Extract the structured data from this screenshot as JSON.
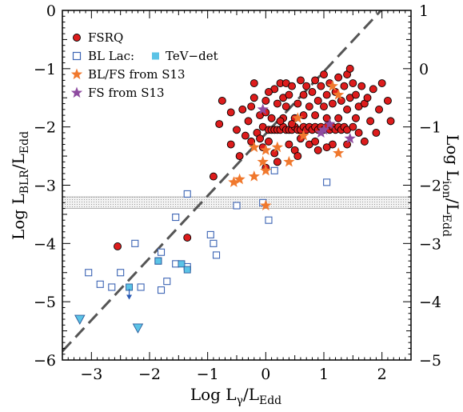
{
  "chart_data": {
    "type": "scatter",
    "xlabel": "Log L_γ/L_Edd",
    "ylabel": "Log L_BLR/L_Edd",
    "y2label": "Log L_ion/L_Edd",
    "xlim": [
      -3.5,
      2.5
    ],
    "ylim": [
      -6,
      0
    ],
    "y2lim": [
      -5,
      1
    ],
    "xticks": [
      -3,
      -2,
      -1,
      0,
      1,
      2
    ],
    "xtick_labels": [
      "−3",
      "−2",
      "−1",
      "0",
      "1",
      "2"
    ],
    "yticks": [
      0,
      -1,
      -2,
      -3,
      -4,
      -5,
      -6
    ],
    "ytick_labels": [
      "0",
      "−1",
      "−2",
      "−3",
      "−4",
      "−5",
      "−6"
    ],
    "y2ticks": [
      1,
      0,
      -1,
      -2,
      -3,
      -4,
      -5
    ],
    "y2tick_labels": [
      "1",
      "0",
      "−1",
      "−2",
      "−3",
      "−4",
      "−5"
    ],
    "grid": false,
    "legend_position": "top-left",
    "legend": [
      {
        "label": "FSRQ",
        "marker": "circle",
        "color": "#dd1c1c"
      },
      {
        "label": "BL Lac:",
        "marker": "open-square",
        "color": "#3c64b4"
      },
      {
        "label": "TeV−det",
        "marker": "filled-square",
        "color": "#5bc3e6"
      },
      {
        "label": "BL/FS from S13",
        "marker": "star",
        "color": "#f0782d"
      },
      {
        "label": "FS from S13",
        "marker": "star",
        "color": "#8e4ba0"
      }
    ],
    "reference_line": {
      "style": "dashed",
      "color": "#555555",
      "points": [
        [
          -3.5,
          -5.85
        ],
        [
          2.5,
          0.55
        ]
      ]
    },
    "shaded_band": {
      "y_range": [
        -3.4,
        -3.2
      ]
    },
    "series": [
      {
        "name": "FSRQ",
        "points": [
          [
            -2.55,
            -4.05
          ],
          [
            -1.35,
            -3.9
          ],
          [
            -0.9,
            -2.85
          ],
          [
            -0.45,
            -2.5
          ],
          [
            -0.6,
            -2.3
          ],
          [
            -0.5,
            -2.05
          ],
          [
            -0.8,
            -1.95
          ],
          [
            -0.3,
            -1.9
          ],
          [
            -0.75,
            -1.55
          ],
          [
            -0.4,
            -1.7
          ],
          [
            -0.2,
            -1.5
          ],
          [
            -0.25,
            -2.25
          ],
          [
            -0.15,
            -2.1
          ],
          [
            -0.1,
            -1.8
          ],
          [
            -0.05,
            -2.0
          ],
          [
            -0.1,
            -2.2
          ],
          [
            -0.05,
            -2.35
          ],
          [
            0.0,
            -1.55
          ],
          [
            0.0,
            -1.75
          ],
          [
            0.05,
            -2.05
          ],
          [
            0.05,
            -2.25
          ],
          [
            0.1,
            -2.05
          ],
          [
            0.1,
            -1.85
          ],
          [
            0.15,
            -2.05
          ],
          [
            0.15,
            -1.35
          ],
          [
            0.15,
            -2.45
          ],
          [
            0.2,
            -2.05
          ],
          [
            0.2,
            -1.6
          ],
          [
            0.25,
            -2.05
          ],
          [
            0.25,
            -1.25
          ],
          [
            0.3,
            -2.0
          ],
          [
            0.3,
            -1.85
          ],
          [
            0.3,
            -1.5
          ],
          [
            0.35,
            -2.05
          ],
          [
            0.35,
            -1.25
          ],
          [
            0.35,
            -1.65
          ],
          [
            0.4,
            -2.05
          ],
          [
            0.4,
            -2.3
          ],
          [
            0.4,
            -1.45
          ],
          [
            0.45,
            -2.05
          ],
          [
            0.45,
            -1.3
          ],
          [
            0.5,
            -2.0
          ],
          [
            0.5,
            -1.85
          ],
          [
            0.5,
            -2.4
          ],
          [
            0.55,
            -2.05
          ],
          [
            0.55,
            -1.6
          ],
          [
            0.55,
            -2.5
          ],
          [
            0.6,
            -2.05
          ],
          [
            0.6,
            -1.2
          ],
          [
            0.65,
            -2.0
          ],
          [
            0.65,
            -1.8
          ],
          [
            0.65,
            -1.45
          ],
          [
            0.7,
            -2.05
          ],
          [
            0.7,
            -1.3
          ],
          [
            0.75,
            -2.0
          ],
          [
            0.75,
            -1.65
          ],
          [
            0.75,
            -2.3
          ],
          [
            0.8,
            -2.05
          ],
          [
            0.8,
            -1.4
          ],
          [
            0.85,
            -2.0
          ],
          [
            0.85,
            -1.8
          ],
          [
            0.85,
            -1.2
          ],
          [
            0.9,
            -2.05
          ],
          [
            0.9,
            -1.55
          ],
          [
            0.9,
            -2.4
          ],
          [
            0.95,
            -2.0
          ],
          [
            0.95,
            -1.3
          ],
          [
            1.0,
            -2.05
          ],
          [
            1.0,
            -1.65
          ],
          [
            1.0,
            -1.1
          ],
          [
            1.05,
            -2.0
          ],
          [
            1.05,
            -1.85
          ],
          [
            1.05,
            -1.45
          ],
          [
            1.1,
            -2.05
          ],
          [
            1.1,
            -1.25
          ],
          [
            1.15,
            -2.0
          ],
          [
            1.15,
            -1.6
          ],
          [
            1.15,
            -2.3
          ],
          [
            1.2,
            -2.05
          ],
          [
            1.2,
            -1.4
          ],
          [
            1.25,
            -2.0
          ],
          [
            1.25,
            -1.85
          ],
          [
            1.25,
            -1.15
          ],
          [
            1.3,
            -2.05
          ],
          [
            1.3,
            -1.55
          ],
          [
            1.35,
            -2.0
          ],
          [
            1.35,
            -1.3
          ],
          [
            1.4,
            -2.05
          ],
          [
            1.4,
            -1.7
          ],
          [
            1.4,
            -1.1
          ],
          [
            1.45,
            -1.0
          ],
          [
            1.45,
            -1.5
          ],
          [
            1.5,
            -2.0
          ],
          [
            1.5,
            -1.25
          ],
          [
            1.55,
            -1.85
          ],
          [
            1.55,
            -1.45
          ],
          [
            1.6,
            -1.65
          ],
          [
            1.65,
            -1.3
          ],
          [
            1.7,
            -1.6
          ],
          [
            1.7,
            -2.25
          ],
          [
            1.75,
            -1.5
          ],
          [
            1.8,
            -1.9
          ],
          [
            1.85,
            -1.35
          ],
          [
            1.9,
            -2.1
          ],
          [
            1.95,
            -1.7
          ],
          [
            2.0,
            -1.25
          ],
          [
            2.1,
            -1.55
          ],
          [
            2.15,
            -1.9
          ],
          [
            -0.35,
            -2.15
          ],
          [
            -0.2,
            -1.25
          ],
          [
            0.0,
            -2.7
          ],
          [
            0.2,
            -2.6
          ],
          [
            0.05,
            -1.4
          ],
          [
            -0.25,
            -1.65
          ],
          [
            0.45,
            -1.95
          ],
          [
            0.6,
            -2.2
          ],
          [
            0.85,
            -2.25
          ],
          [
            1.05,
            -2.35
          ],
          [
            1.4,
            -2.3
          ],
          [
            1.6,
            -2.1
          ],
          [
            0.25,
            -1.9
          ],
          [
            -0.6,
            -1.75
          ]
        ]
      },
      {
        "name": "BL Lac:",
        "points": [
          [
            -3.05,
            -4.5
          ],
          [
            -2.85,
            -4.7
          ],
          [
            -2.5,
            -4.5
          ],
          [
            -2.65,
            -4.75
          ],
          [
            -2.25,
            -4.0
          ],
          [
            -2.15,
            -4.75
          ],
          [
            -1.8,
            -4.15
          ],
          [
            -1.85,
            -4.3
          ],
          [
            -1.7,
            -4.65
          ],
          [
            -1.8,
            -4.8
          ],
          [
            -1.55,
            -3.55
          ],
          [
            -1.55,
            -4.35
          ],
          [
            -1.35,
            -3.15
          ],
          [
            -1.35,
            -4.4
          ],
          [
            -0.95,
            -3.85
          ],
          [
            -0.9,
            -4.0
          ],
          [
            -0.85,
            -4.2
          ],
          [
            -0.5,
            -3.35
          ],
          [
            -0.05,
            -3.3
          ],
          [
            0.05,
            -3.6
          ],
          [
            0.15,
            -2.75
          ],
          [
            1.05,
            -2.95
          ]
        ]
      },
      {
        "name": "TeV−det",
        "points": [
          [
            -2.35,
            -4.75
          ],
          [
            -1.85,
            -4.3
          ],
          [
            -1.45,
            -4.35
          ],
          [
            -1.35,
            -4.45
          ]
        ]
      },
      {
        "name": "TeV−det upper limits",
        "points": [
          [
            -3.2,
            -5.3
          ],
          [
            -2.2,
            -5.45
          ],
          [
            -2.35,
            -4.95
          ]
        ]
      },
      {
        "name": "BL/FS from S13",
        "points": [
          [
            -0.55,
            -2.95
          ],
          [
            -0.45,
            -2.9
          ],
          [
            -0.2,
            -2.35
          ],
          [
            -0.2,
            -2.85
          ],
          [
            -0.05,
            -2.6
          ],
          [
            0.0,
            -2.4
          ],
          [
            0.0,
            -3.35
          ],
          [
            0.0,
            -2.75
          ],
          [
            0.2,
            -2.35
          ],
          [
            0.4,
            -2.6
          ],
          [
            0.55,
            -1.85
          ],
          [
            0.65,
            -2.15
          ],
          [
            1.15,
            -1.3
          ],
          [
            1.25,
            -1.45
          ],
          [
            1.25,
            -2.45
          ]
        ]
      },
      {
        "name": "FS from S13",
        "points": [
          [
            -0.05,
            -1.7
          ],
          [
            0.95,
            -2.1
          ],
          [
            1.0,
            -2.05
          ],
          [
            1.1,
            -1.95
          ],
          [
            1.45,
            -2.2
          ]
        ]
      }
    ]
  }
}
